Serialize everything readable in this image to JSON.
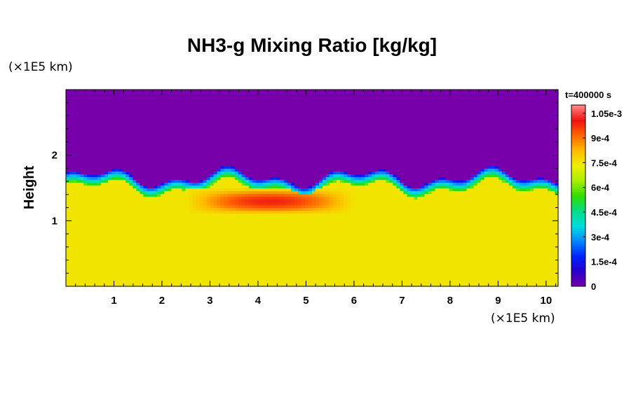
{
  "chart_data": {
    "type": "heatmap",
    "title": "NH3-g Mixing Ratio [kg/kg]",
    "ylabel": "Height",
    "x_unit": "(×1E5 km)",
    "y_unit": "(×1E5 km)",
    "time_label": "t=400000 s",
    "xlim": [
      0,
      10.25
    ],
    "ylim": [
      0,
      3.0
    ],
    "x_ticks": [
      1,
      2,
      3,
      4,
      5,
      6,
      7,
      8,
      9,
      10
    ],
    "y_ticks": [
      1,
      2
    ],
    "colorbar": {
      "range": [
        0,
        0.0011
      ],
      "tick_values": [
        0,
        0.00015,
        0.0003,
        0.00045,
        0.0006,
        0.00075,
        0.0009,
        0.00105
      ],
      "tick_labels": [
        "0",
        "1.5e-4",
        "3e-4",
        "4.5e-4",
        "6e-4",
        "7.5e-4",
        "9e-4",
        "1.05e-3"
      ],
      "colors": [
        "#7700aa",
        "#2a00c8",
        "#0022ff",
        "#0088ff",
        "#00dddd",
        "#00dd88",
        "#33dd00",
        "#aaee00",
        "#eeee00",
        "#ffbb00",
        "#ff6600",
        "#ee1111",
        "#ff8888"
      ]
    },
    "field_summary": {
      "lower_layer_value": 0.00075,
      "upper_layer_value": 0,
      "interface_height_range": [
        1.45,
        1.8
      ],
      "peak_region_x_range": [
        2.5,
        6.0
      ],
      "peak_region_height_range": [
        1.1,
        1.5
      ],
      "peak_value": 0.00105
    }
  },
  "colors": {
    "background": "#ffffff",
    "upper": "#7700aa",
    "lower": "#d6f200"
  }
}
